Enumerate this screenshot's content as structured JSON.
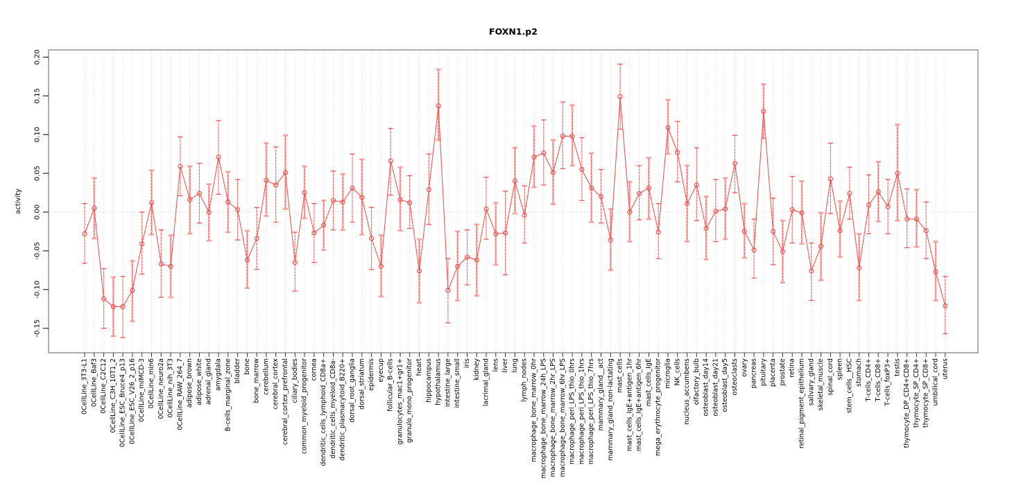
{
  "title": "FOXN1.p2",
  "ylabel": "activity",
  "colors": {
    "series_red": "#f4534e",
    "error_light": "#f9a09d",
    "grid": "#dcdcdc",
    "zero_line": "#d6d6d6",
    "box_border": "#999999",
    "text": "#000000"
  },
  "chart_data": {
    "type": "scatter",
    "title": "FOXN1.p2",
    "xlabel": "",
    "ylabel": "activity",
    "ylim": [
      -0.182,
      0.209
    ],
    "yticks": [
      0.2,
      0.15,
      0.1,
      0.05,
      0.0,
      -0.05,
      -0.1,
      -0.15
    ],
    "grid": "vertical dotted line at every category; dotted horizontal line at 0",
    "legend_position": "none",
    "error_bars": true,
    "line_connected": true,
    "marker": "open-circle",
    "categories": [
      "0CellLine_3T3-L1",
      "0CellLine_Baf3",
      "0CellLine_C2C12",
      "0CellLine_C3H_10T1_2",
      "0CellLine_ESC_Bruce4_p13",
      "0CellLine_ESC_V26_2_p16",
      "0CellLine_mIMCD-3",
      "0CellLine_min6",
      "0CellLine_neuro2a",
      "0CellLine_nih_3T3",
      "0CellLine_RAW_264_7",
      "adipose_brown",
      "adipose_white",
      "adrenal_gland",
      "amygdala",
      "B-cells_marginal_zone",
      "bladder",
      "bone",
      "bone_marrow",
      "cerebellum",
      "cerebral_cortex",
      "cerebral_cortex_prefrontal",
      "ciliary_bodies",
      "common_myeloid_progenitor",
      "cornea",
      "dendritic_cells_lymphoid_CD8a+",
      "dendritic_cells_myeloid_CD8a-",
      "dendritic_plasmacytoid_B220+",
      "dorsal_root_ganglia",
      "dorsal_striatum",
      "epidermis",
      "eyecup",
      "follicular_B-cells",
      "granulocytes_mac1+gr1+",
      "granulo_mono_progenitor",
      "heart",
      "hippocampus",
      "hypothalamus",
      "intestine_large",
      "intestine_small",
      "iris",
      "kidney",
      "lacrimal_gland",
      "lens",
      "liver",
      "lung",
      "lymph_nodes",
      "macrophage_bone_marrow_0hr",
      "macrophage_bone_marrow_24h_LPS",
      "macrophage_bone_marrow_2hr_LPS",
      "macrophage_bone_marrow_6hr_LPS",
      "macrophage_peri_LPS_thio_0hrs",
      "macrophage_peri_LPS_thio_1hrs",
      "macrophage_peri_LPS_thio_7hrs",
      "mammary_gland__act",
      "mammary_gland_non-lactating",
      "mast_cells",
      "mast_cells_IgE+antigen_1hr",
      "mast_cells_IgE+antigen_6hr",
      "mast_cells_IgE",
      "mega_erythrocyte_progenitor",
      "microglia",
      "NK_cells",
      "nucleus_accumbens",
      "olfactory_bulb",
      "osteoblast_day14",
      "osteoblast_day21",
      "osteoblast_day5",
      "osteoclasts",
      "ovary",
      "pancreas",
      "pituitary",
      "placenta",
      "prostate",
      "retina",
      "retinal_pigment_epithelium",
      "salivary_gland",
      "skeletal_muscle",
      "spinal_cord",
      "spleen",
      "stem_cells__HSC",
      "stomach",
      "T-cells_CD4+",
      "T-cells_CD8+",
      "T-cells_foxP3+",
      "testis",
      "thymocyte_DP_CD4+CD8+",
      "thymocyte_SP_CD4+",
      "thymocyte_SP_CD8+",
      "umbilical_cord",
      "uterus"
    ],
    "values": [
      -0.028,
      0.005,
      -0.112,
      -0.122,
      -0.122,
      -0.101,
      -0.041,
      0.012,
      -0.067,
      -0.07,
      0.059,
      0.016,
      0.024,
      0.0,
      0.071,
      0.013,
      0.003,
      -0.062,
      -0.034,
      0.041,
      0.035,
      0.051,
      -0.065,
      0.025,
      -0.027,
      -0.017,
      0.015,
      0.013,
      0.031,
      0.019,
      -0.034,
      -0.07,
      0.066,
      0.016,
      0.012,
      -0.076,
      0.029,
      0.137,
      -0.101,
      -0.07,
      -0.058,
      -0.062,
      0.004,
      -0.028,
      -0.027,
      0.04,
      -0.004,
      0.071,
      0.076,
      0.051,
      0.098,
      0.098,
      0.055,
      0.031,
      0.02,
      -0.036,
      0.149,
      0.0,
      0.024,
      0.031,
      -0.026,
      0.109,
      0.077,
      0.011,
      0.035,
      -0.021,
      0.001,
      0.004,
      0.063,
      -0.025,
      -0.049,
      0.13,
      -0.025,
      -0.051,
      0.003,
      -0.001,
      -0.076,
      -0.044,
      0.043,
      -0.024,
      0.024,
      -0.072,
      0.009,
      0.026,
      0.007,
      0.05,
      -0.009,
      -0.009,
      -0.024,
      -0.077,
      -0.121
    ],
    "err_lo": [
      -0.066,
      -0.034,
      -0.15,
      -0.16,
      -0.162,
      -0.141,
      -0.08,
      -0.029,
      -0.11,
      -0.11,
      0.021,
      -0.028,
      -0.014,
      -0.037,
      0.023,
      -0.026,
      -0.036,
      -0.098,
      -0.074,
      -0.005,
      -0.013,
      0.004,
      -0.102,
      -0.008,
      -0.065,
      -0.049,
      -0.023,
      -0.023,
      -0.013,
      -0.029,
      -0.074,
      -0.109,
      0.022,
      -0.024,
      -0.021,
      -0.117,
      -0.016,
      0.093,
      -0.143,
      -0.114,
      -0.094,
      -0.108,
      -0.035,
      -0.068,
      -0.081,
      -0.002,
      -0.04,
      0.032,
      0.035,
      0.01,
      0.056,
      0.06,
      0.015,
      -0.013,
      -0.014,
      -0.075,
      0.107,
      -0.038,
      -0.01,
      -0.009,
      -0.06,
      0.075,
      0.039,
      -0.038,
      -0.011,
      -0.061,
      -0.038,
      -0.035,
      0.025,
      -0.059,
      -0.085,
      0.095,
      -0.068,
      -0.091,
      -0.04,
      -0.041,
      -0.114,
      -0.088,
      -0.002,
      -0.058,
      -0.009,
      -0.114,
      -0.028,
      -0.012,
      -0.028,
      -0.011,
      -0.046,
      -0.045,
      -0.06,
      -0.114,
      -0.157
    ],
    "err_hi": [
      0.011,
      0.044,
      -0.073,
      -0.084,
      -0.083,
      -0.063,
      0.0,
      0.054,
      -0.023,
      -0.03,
      0.097,
      0.059,
      0.063,
      0.036,
      0.118,
      0.052,
      0.042,
      -0.024,
      0.006,
      0.089,
      0.084,
      0.099,
      -0.026,
      0.059,
      0.011,
      0.015,
      0.053,
      0.049,
      0.075,
      0.068,
      0.006,
      -0.03,
      0.108,
      0.058,
      0.047,
      -0.035,
      0.075,
      0.184,
      -0.06,
      -0.025,
      -0.023,
      -0.016,
      0.045,
      0.012,
      0.027,
      0.083,
      0.034,
      0.111,
      0.119,
      0.093,
      0.142,
      0.138,
      0.096,
      0.076,
      0.055,
      0.004,
      0.191,
      0.039,
      0.06,
      0.07,
      0.011,
      0.145,
      0.117,
      0.06,
      0.083,
      0.02,
      0.042,
      0.044,
      0.099,
      0.011,
      -0.009,
      0.165,
      0.018,
      -0.011,
      0.046,
      0.04,
      -0.04,
      -0.001,
      0.089,
      0.014,
      0.058,
      -0.028,
      0.048,
      0.065,
      0.042,
      0.113,
      0.03,
      0.029,
      0.013,
      -0.038,
      -0.083
    ]
  }
}
